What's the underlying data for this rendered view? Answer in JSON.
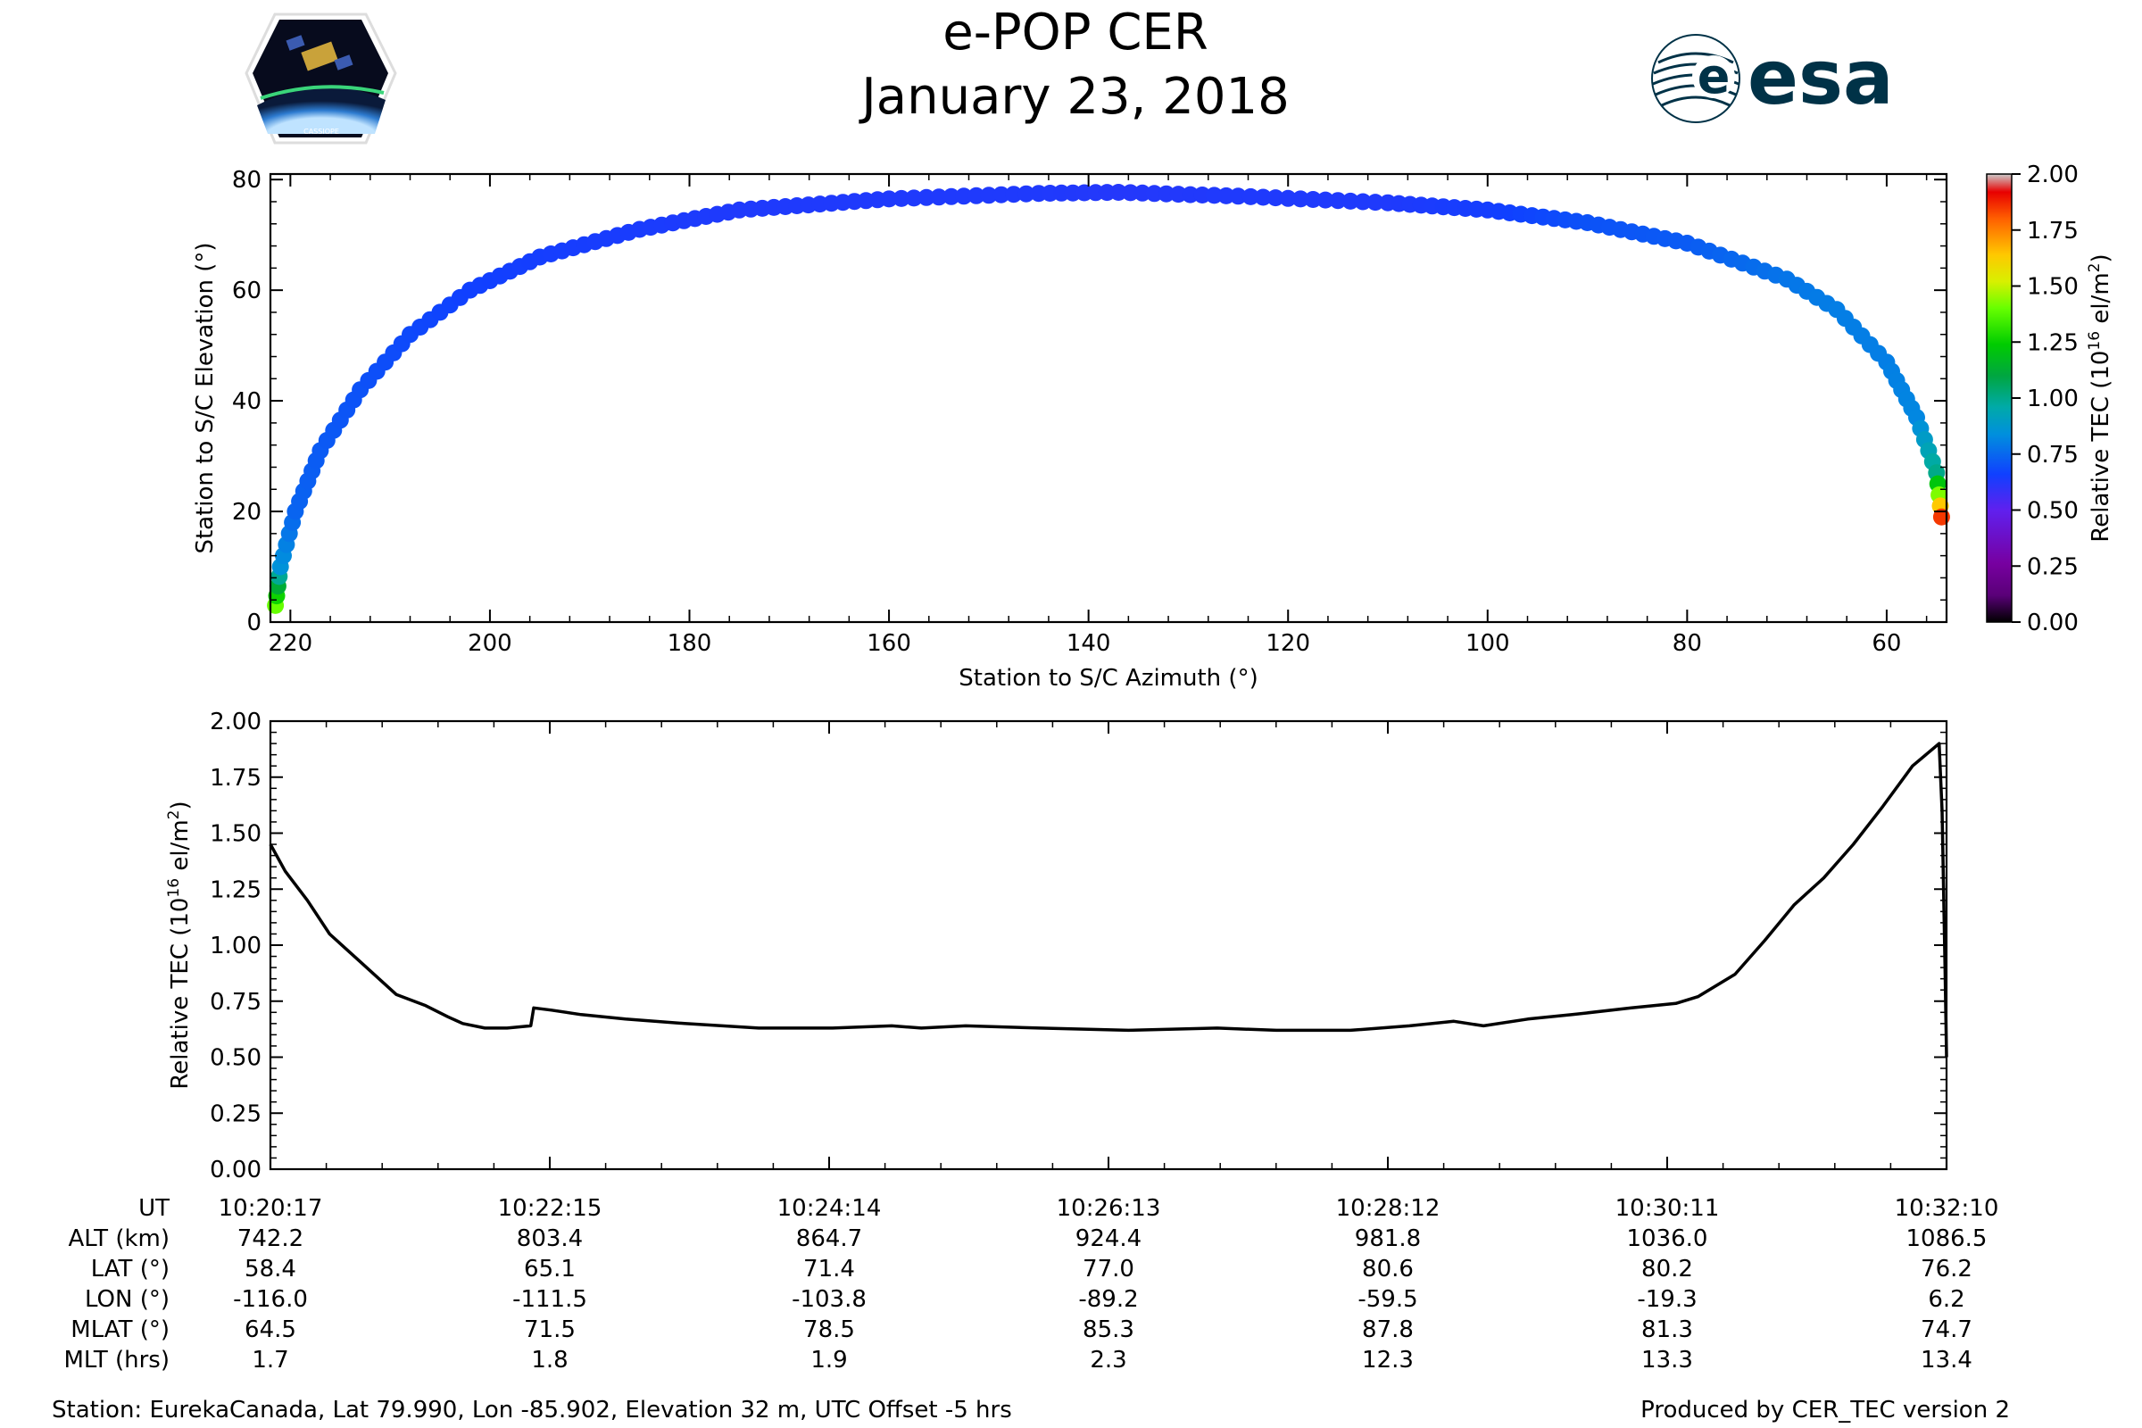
{
  "header": {
    "title_line1": "e-POP CER",
    "title_line2": "January 23, 2018",
    "left_logo": {
      "name": "cassiope-logo",
      "label": "CASSIOPE"
    },
    "right_logo": {
      "name": "esa-logo",
      "label": "esa",
      "color": "#003247"
    }
  },
  "chart_data": [
    {
      "type": "scatter",
      "xlabel": "Station to S/C Azimuth (°)",
      "ylabel": "Station to S/C Elevation (°)",
      "xlim": [
        222,
        54
      ],
      "ylim": [
        0,
        81
      ],
      "xticks": [
        220,
        200,
        180,
        160,
        140,
        120,
        100,
        80,
        60
      ],
      "yticks": [
        0,
        20,
        40,
        60,
        80
      ],
      "colorbar": {
        "label_main": "Relative TEC (10",
        "label_sup1": "16",
        "label_mid": " el/m",
        "label_sup2": "2",
        "label_end": ")",
        "range": [
          0,
          2
        ],
        "ticks": [
          "0.00",
          "0.25",
          "0.50",
          "0.75",
          "1.00",
          "1.25",
          "1.50",
          "1.75",
          "2.00"
        ],
        "colormap": "nipy_spectral"
      },
      "path": {
        "x": [
          221.5,
          221.0,
          219.5,
          217.0,
          213.0,
          208.0,
          202.0,
          195.0,
          185.0,
          175.0,
          160.0,
          145.0,
          137.0,
          125.0,
          110.0,
          100.0,
          90.0,
          80.0,
          70.0,
          65.0,
          60.0,
          57.0,
          55.0,
          54.5
        ],
        "y": [
          3,
          10,
          20,
          31,
          42,
          52,
          60,
          66,
          71,
          74.5,
          76.5,
          77.5,
          77.7,
          77,
          75.8,
          74.5,
          72.2,
          68.5,
          62,
          56.5,
          47,
          37,
          27,
          19
        ],
        "tec": [
          1.4,
          0.85,
          0.74,
          0.72,
          0.7,
          0.68,
          0.66,
          0.65,
          0.64,
          0.63,
          0.63,
          0.63,
          0.62,
          0.63,
          0.63,
          0.65,
          0.7,
          0.72,
          0.78,
          0.8,
          0.8,
          0.82,
          1.0,
          1.85
        ]
      }
    },
    {
      "type": "line",
      "xlabel": "",
      "ylabel_main": "Relative TEC (10",
      "ylabel_sup1": "16",
      "ylabel_mid": " el/m",
      "ylabel_sup2": "2",
      "ylabel_end": ")",
      "ylim": [
        0,
        2
      ],
      "yticks": [
        "0.00",
        "0.25",
        "0.50",
        "0.75",
        "1.00",
        "1.25",
        "1.50",
        "1.75",
        "2.00"
      ],
      "x_seconds": [
        0,
        10,
        25,
        40,
        60,
        85,
        105,
        120,
        130,
        145,
        160,
        176,
        178,
        190,
        210,
        240,
        280,
        330,
        380,
        420,
        440,
        470,
        520,
        580,
        640,
        680,
        700,
        730,
        770,
        800,
        820,
        850,
        880,
        920,
        950,
        965,
        990,
        1010,
        1030,
        1050,
        1070,
        1090,
        1110,
        1128,
        1130,
        1132,
        1133
      ],
      "values": [
        1.45,
        1.33,
        1.2,
        1.05,
        0.93,
        0.78,
        0.73,
        0.68,
        0.65,
        0.63,
        0.63,
        0.64,
        0.72,
        0.71,
        0.69,
        0.67,
        0.65,
        0.63,
        0.63,
        0.64,
        0.63,
        0.64,
        0.63,
        0.62,
        0.63,
        0.62,
        0.62,
        0.62,
        0.64,
        0.66,
        0.64,
        0.67,
        0.69,
        0.72,
        0.74,
        0.77,
        0.87,
        1.02,
        1.18,
        1.3,
        1.45,
        1.62,
        1.8,
        1.9,
        1.6,
        0.9,
        0.5
      ],
      "x_total_seconds": 1133
    }
  ],
  "ephemeris": {
    "row_labels": [
      "UT",
      "ALT (km)",
      "LAT (°)",
      "LON (°)",
      "MLAT (°)",
      "MLT (hrs)"
    ],
    "columns": [
      [
        "10:20:17",
        "742.2",
        "58.4",
        "-116.0",
        "64.5",
        "1.7"
      ],
      [
        "10:22:15",
        "803.4",
        "65.1",
        "-111.5",
        "71.5",
        "1.8"
      ],
      [
        "10:24:14",
        "864.7",
        "71.4",
        "-103.8",
        "78.5",
        "1.9"
      ],
      [
        "10:26:13",
        "924.4",
        "77.0",
        "-89.2",
        "85.3",
        "2.3"
      ],
      [
        "10:28:12",
        "981.8",
        "80.6",
        "-59.5",
        "87.8",
        "12.3"
      ],
      [
        "10:30:11",
        "1036.0",
        "80.2",
        "-19.3",
        "81.3",
        "13.3"
      ],
      [
        "10:32:10",
        "1086.5",
        "76.2",
        "6.2",
        "74.7",
        "13.4"
      ]
    ]
  },
  "footer": {
    "station": "Station: EurekaCanada, Lat 79.990, Lon -85.902, Elevation 32 m, UTC Offset -5 hrs",
    "produced_by": "Produced by CER_TEC version 2"
  }
}
